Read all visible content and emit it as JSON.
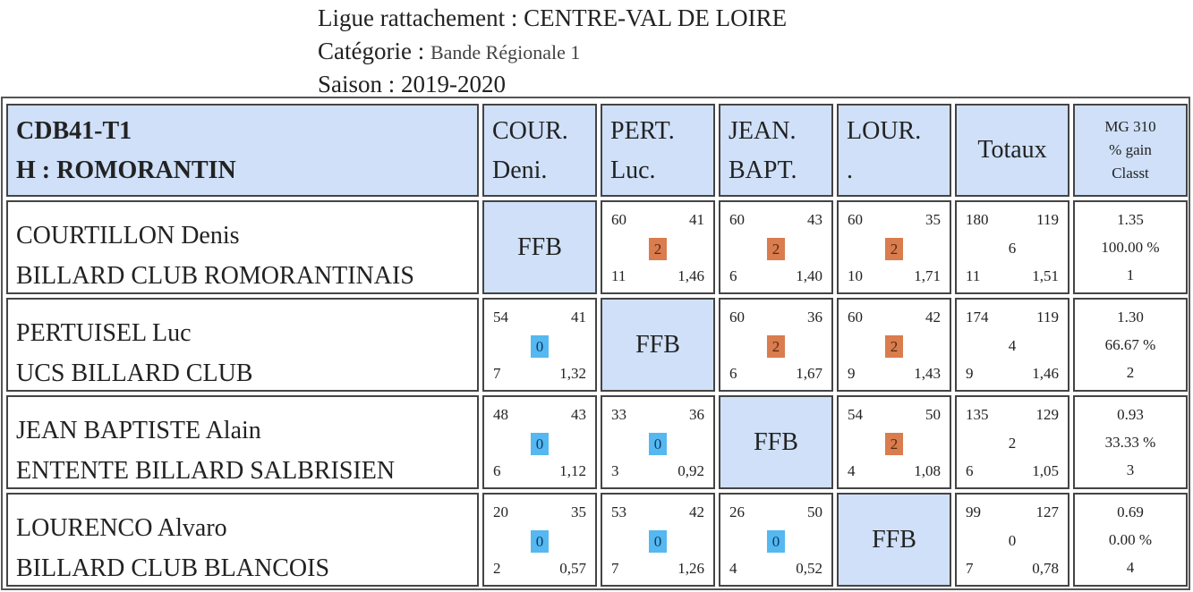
{
  "header": {
    "ligue_label": "Ligue rattachement : ",
    "ligue_value": "CENTRE-VAL DE LOIRE",
    "categorie_label": "Catégorie : ",
    "categorie_value": "Bande Régionale 1",
    "saison_label": "Saison : ",
    "saison_value": "2019-2020"
  },
  "table": {
    "title_line1": "CDB41-T1",
    "title_line2": "H : ROMORANTIN",
    "columns": [
      {
        "line1": "COUR.",
        "line2": "Deni."
      },
      {
        "line1": "PERT.",
        "line2": "Luc."
      },
      {
        "line1": "JEAN.",
        "line2": "BAPT."
      },
      {
        "line1": "LOUR.",
        "line2": "."
      }
    ],
    "totals_label": "Totaux",
    "mg_header": {
      "line1": "MG 310",
      "line2": "% gain",
      "line3": "Classt"
    },
    "self_label": "FFB",
    "rows": [
      {
        "name": "COURTILLON Denis",
        "club": "BILLARD CLUB ROMORANTINAIS",
        "cells": [
          null,
          {
            "pts": "60",
            "opp": "41",
            "score": "2",
            "reprises": "11",
            "avg": "1,46"
          },
          {
            "pts": "60",
            "opp": "43",
            "score": "2",
            "reprises": "6",
            "avg": "1,40"
          },
          {
            "pts": "60",
            "opp": "35",
            "score": "2",
            "reprises": "10",
            "avg": "1,71"
          }
        ],
        "totals": {
          "pts": "180",
          "opp": "119",
          "score": "6",
          "reprises": "11",
          "avg": "1,51"
        },
        "mg": {
          "mg": "1.35",
          "pct": "100.00 %",
          "rank": "1"
        }
      },
      {
        "name": "PERTUISEL Luc",
        "club": "UCS BILLARD CLUB",
        "cells": [
          {
            "pts": "54",
            "opp": "41",
            "score": "0",
            "reprises": "7",
            "avg": "1,32"
          },
          null,
          {
            "pts": "60",
            "opp": "36",
            "score": "2",
            "reprises": "6",
            "avg": "1,67"
          },
          {
            "pts": "60",
            "opp": "42",
            "score": "2",
            "reprises": "9",
            "avg": "1,43"
          }
        ],
        "totals": {
          "pts": "174",
          "opp": "119",
          "score": "4",
          "reprises": "9",
          "avg": "1,46"
        },
        "mg": {
          "mg": "1.30",
          "pct": "66.67 %",
          "rank": "2"
        }
      },
      {
        "name": "JEAN BAPTISTE Alain",
        "club": "ENTENTE BILLARD SALBRISIEN",
        "cells": [
          {
            "pts": "48",
            "opp": "43",
            "score": "0",
            "reprises": "6",
            "avg": "1,12"
          },
          {
            "pts": "33",
            "opp": "36",
            "score": "0",
            "reprises": "3",
            "avg": "0,92"
          },
          null,
          {
            "pts": "54",
            "opp": "50",
            "score": "2",
            "reprises": "4",
            "avg": "1,08"
          }
        ],
        "totals": {
          "pts": "135",
          "opp": "129",
          "score": "2",
          "reprises": "6",
          "avg": "1,05"
        },
        "mg": {
          "mg": "0.93",
          "pct": "33.33 %",
          "rank": "3"
        }
      },
      {
        "name": "LOURENCO Alvaro",
        "club": "BILLARD CLUB BLANCOIS",
        "cells": [
          {
            "pts": "20",
            "opp": "35",
            "score": "0",
            "reprises": "2",
            "avg": "0,57"
          },
          {
            "pts": "53",
            "opp": "42",
            "score": "0",
            "reprises": "7",
            "avg": "1,26"
          },
          {
            "pts": "26",
            "opp": "50",
            "score": "0",
            "reprises": "4",
            "avg": "0,52"
          },
          null
        ],
        "totals": {
          "pts": "99",
          "opp": "127",
          "score": "0",
          "reprises": "7",
          "avg": "0,78"
        },
        "mg": {
          "mg": "0.69",
          "pct": "0.00 %",
          "rank": "4"
        }
      }
    ]
  },
  "colors": {
    "win": "#d97c4e",
    "loss": "#55b8f0",
    "header_bg": "#cfe0f8"
  }
}
